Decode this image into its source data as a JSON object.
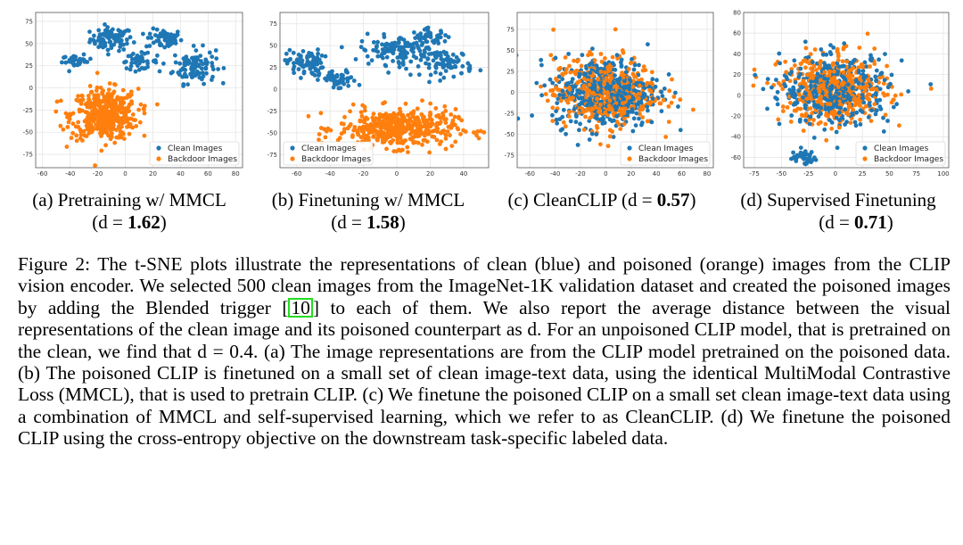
{
  "chart_data": [
    {
      "type": "scatter",
      "title": "",
      "xlabel": "",
      "ylabel": "",
      "x_ticks": [
        -60,
        -40,
        -20,
        0,
        20,
        40,
        60,
        80
      ],
      "y_ticks": [
        -75,
        -50,
        -25,
        0,
        25,
        50,
        75
      ],
      "xlim": [
        -65,
        85
      ],
      "ylim": [
        -90,
        85
      ],
      "legend_position": "bottom-right",
      "grid": true,
      "series": [
        {
          "name": "Clean Images",
          "color": "#1f77b4",
          "clusters": [
            [
              -10,
              55,
              14,
              12,
              80
            ],
            [
              28,
              55,
              12,
              10,
              60
            ],
            [
              50,
              25,
              14,
              18,
              110
            ],
            [
              -35,
              30,
              10,
              6,
              30
            ],
            [
              10,
              30,
              12,
              8,
              40
            ]
          ]
        },
        {
          "name": "Backdoor Images",
          "color": "#ff7f0e",
          "clusters": [
            [
              -15,
              -30,
              22,
              26,
              450
            ]
          ]
        }
      ]
    },
    {
      "type": "scatter",
      "title": "",
      "xlabel": "",
      "ylabel": "",
      "x_ticks": [
        -60,
        -40,
        -20,
        0,
        20,
        40
      ],
      "y_ticks": [
        -75,
        -50,
        -25,
        0,
        25,
        50,
        75
      ],
      "xlim": [
        -70,
        55
      ],
      "ylim": [
        -90,
        88
      ],
      "legend_position": "bottom-left",
      "grid": true,
      "series": [
        {
          "name": "Clean Images",
          "color": "#1f77b4",
          "clusters": [
            [
              -55,
              30,
              10,
              14,
              80
            ],
            [
              -35,
              10,
              10,
              10,
              50
            ],
            [
              0,
              45,
              20,
              15,
              120
            ],
            [
              30,
              30,
              14,
              14,
              80
            ],
            [
              20,
              60,
              10,
              8,
              40
            ]
          ]
        },
        {
          "name": "Backdoor Images",
          "color": "#ff7f0e",
          "clusters": [
            [
              0,
              -45,
              32,
              20,
              450
            ]
          ]
        }
      ]
    },
    {
      "type": "scatter",
      "title": "",
      "xlabel": "",
      "ylabel": "",
      "x_ticks": [
        -60,
        -40,
        -20,
        0,
        20,
        40,
        60,
        80
      ],
      "y_ticks": [
        -75,
        -50,
        -25,
        0,
        25,
        50,
        75
      ],
      "xlim": [
        -70,
        85
      ],
      "ylim": [
        -90,
        95
      ],
      "legend_position": "bottom-right",
      "grid": true,
      "series": [
        {
          "name": "Clean Images",
          "color": "#1f77b4",
          "clusters": [
            [
              0,
              0,
              38,
              38,
              450
            ]
          ]
        },
        {
          "name": "Backdoor Images",
          "color": "#ff7f0e",
          "clusters": [
            [
              0,
              0,
              38,
              38,
              450
            ]
          ]
        }
      ]
    },
    {
      "type": "scatter",
      "title": "",
      "xlabel": "",
      "ylabel": "",
      "x_ticks": [
        -75,
        -50,
        -25,
        0,
        25,
        50,
        75,
        100
      ],
      "y_ticks": [
        -60,
        -40,
        -20,
        0,
        20,
        40,
        60,
        80
      ],
      "xlim": [
        -85,
        105
      ],
      "ylim": [
        -70,
        80
      ],
      "legend_position": "bottom-right",
      "grid": true,
      "series": [
        {
          "name": "Clean Images",
          "color": "#1f77b4",
          "clusters": [
            [
              0,
              5,
              45,
              30,
              420
            ],
            [
              -30,
              -60,
              12,
              6,
              40
            ]
          ]
        },
        {
          "name": "Backdoor Images",
          "color": "#ff7f0e",
          "clusters": [
            [
              0,
              5,
              45,
              30,
              450
            ]
          ]
        }
      ]
    }
  ],
  "subcaptions": [
    {
      "line1": "(a)  Pretraining w/ MMCL",
      "line2_prefix": "(d = ",
      "value": "1.62",
      "line2_suffix": ")"
    },
    {
      "line1": "(b)  Finetuning w/ MMCL",
      "line2_prefix": "(d = ",
      "value": "1.58",
      "line2_suffix": ")"
    },
    {
      "line1_prefix": "(c)  CleanCLIP (d = ",
      "value": "0.57",
      "line1_suffix": ")"
    },
    {
      "line1": "(d)  Supervised Finetuning",
      "line2_prefix": "(d = ",
      "value": "0.71",
      "line2_suffix": ")"
    }
  ],
  "caption": {
    "before_cite": "Figure 2: The t-SNE plots illustrate the representations of clean (blue) and poisoned (orange) images from the CLIP vision encoder.  We selected 500 clean images from the ImageNet-1K validation dataset and created the poisoned images by adding the Blended trigger [",
    "cite": "10",
    "after_cite": "] to each of them. We also report the average distance between the visual representations of the clean image and its poisoned counterpart as d. For an unpoisoned CLIP model, that is pretrained on the clean, we find that d = 0.4. (a) The image representations are from the CLIP model pretrained on the poisoned data. (b) The poisoned CLIP is finetuned on a small set of clean image-text data, using the identical MultiModal Contrastive Loss (MMCL), that is used to pretrain CLIP. (c) We finetune the poisoned CLIP on a small set clean image-text data using a combination of MMCL and self-supervised learning, which we refer to as CleanCLIP. (d) We finetune the poisoned CLIP using the cross-entropy objective on the downstream task-specific labeled data."
  }
}
